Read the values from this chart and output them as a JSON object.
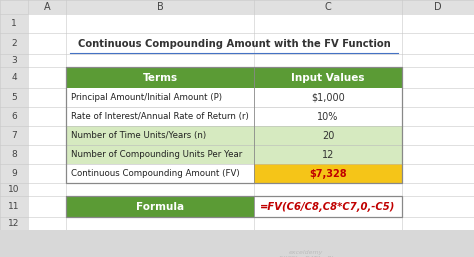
{
  "title": "Continuous Compounding Amount with the FV Function",
  "col_headers": [
    "Terms",
    "Input Values"
  ],
  "rows": [
    [
      "Principal Amount/Initial Amount (P)",
      "$1,000"
    ],
    [
      "Rate of Interest/Annual Rate of Return (r)",
      "10%"
    ],
    [
      "Number of Time Units/Years (n)",
      "20"
    ],
    [
      "Number of Compounding Units Per Year",
      "12"
    ],
    [
      "Continuous Compounding Amount (FV)",
      "$7,328"
    ]
  ],
  "formula_label": "Formula",
  "formula_value": "=FV(C6/C8,C8*C7,0,-C5)",
  "header_bg": "#5B9B35",
  "header_fg": "#FFFFFF",
  "row_alt_bg": "#D6EAC0",
  "row_normal_bg": "#FFFFFF",
  "fv_cell_bg": "#F5C518",
  "fv_cell_fg": "#C00000",
  "formula_cell_bg": "#5B9B35",
  "formula_cell_fg": "#FFFFFF",
  "formula_value_fg": "#C00000",
  "title_color": "#333333",
  "spreadsheet_bg": "#FFFFFF",
  "col_header_bg": "#E0E0E0",
  "row_header_bg": "#E0E0E0",
  "grid_color": "#C8C8C8",
  "outer_bg": "#D8D8D8"
}
